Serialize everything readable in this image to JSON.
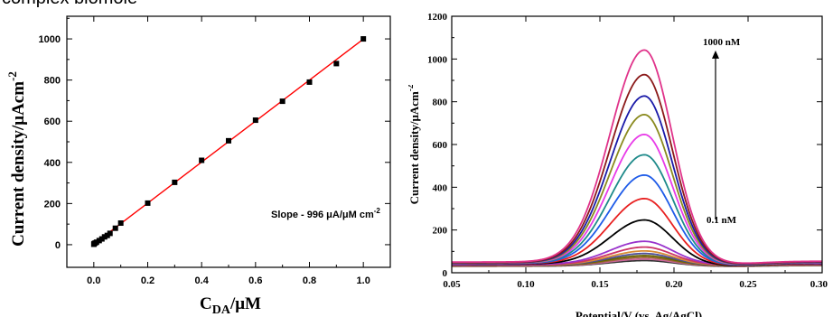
{
  "caption_text": "complex biomole",
  "chart_data": [
    {
      "type": "scatter",
      "xlabel_main": "C",
      "xlabel_sub": "DA",
      "xlabel_tail": "/μM",
      "ylabel": "Current density/μAcm",
      "ylabel_sup": "-2",
      "xlim": [
        -0.1,
        1.1
      ],
      "ylim": [
        -110,
        1110
      ],
      "xticks": [
        0.0,
        0.2,
        0.4,
        0.6,
        0.8,
        1.0
      ],
      "xtick_labels": [
        "0.0",
        "0.2",
        "0.4",
        "0.6",
        "0.8",
        "1.0"
      ],
      "yticks": [
        0,
        200,
        400,
        600,
        800,
        1000
      ],
      "ytick_labels": [
        "0",
        "200",
        "400",
        "600",
        "800",
        "1000"
      ],
      "x": [
        0.0001,
        0.001,
        0.005,
        0.01,
        0.02,
        0.03,
        0.04,
        0.05,
        0.06,
        0.08,
        0.1,
        0.2,
        0.3,
        0.4,
        0.5,
        0.6,
        0.7,
        0.8,
        0.9,
        1.0
      ],
      "y": [
        2,
        5,
        8,
        12,
        20,
        28,
        38,
        45,
        55,
        80,
        105,
        202,
        303,
        410,
        505,
        605,
        697,
        790,
        880,
        1000
      ],
      "fit": {
        "slope": 996,
        "intercept": 3
      },
      "marker_color": "#000000",
      "fit_color": "#ff0000",
      "annotation_pre": "Slope - 996 ",
      "annotation_unit": "μA/μM cm",
      "annotation_sup": "-2"
    },
    {
      "type": "line",
      "xlabel": "Potential/V (vs. Ag/AgCl)",
      "ylabel": "Current density/μAcm",
      "ylabel_sup": "-2",
      "xlim": [
        0.05,
        0.3
      ],
      "ylim": [
        0,
        1200
      ],
      "xticks": [
        0.05,
        0.1,
        0.15,
        0.2,
        0.25,
        0.3
      ],
      "xtick_labels": [
        "0.05",
        "0.10",
        "0.15",
        "0.20",
        "0.25",
        "0.30"
      ],
      "yticks": [
        0,
        200,
        400,
        600,
        800,
        1000,
        1200
      ],
      "ytick_labels": [
        "0",
        "200",
        "400",
        "600",
        "800",
        "1000",
        "1200"
      ],
      "peak_potential": 0.18,
      "peak_width": 0.022,
      "series": [
        {
          "peak": 1040,
          "baseline": 50,
          "color": "#e0338a"
        },
        {
          "peak": 925,
          "baseline": 48,
          "color": "#8b1a1a"
        },
        {
          "peak": 825,
          "baseline": 47,
          "color": "#1a1aa8"
        },
        {
          "peak": 738,
          "baseline": 46,
          "color": "#8a8a1e"
        },
        {
          "peak": 645,
          "baseline": 45,
          "color": "#e83ae8"
        },
        {
          "peak": 550,
          "baseline": 44,
          "color": "#1e8a8a"
        },
        {
          "peak": 455,
          "baseline": 43,
          "color": "#1e5be8"
        },
        {
          "peak": 345,
          "baseline": 42,
          "color": "#e82020"
        },
        {
          "peak": 245,
          "baseline": 40,
          "color": "#000000"
        },
        {
          "peak": 145,
          "baseline": 38,
          "color": "#9933cc"
        },
        {
          "peak": 118,
          "baseline": 36,
          "color": "#cc3366"
        },
        {
          "peak": 100,
          "baseline": 35,
          "color": "#d98c33"
        },
        {
          "peak": 88,
          "baseline": 34,
          "color": "#4d4d99"
        },
        {
          "peak": 78,
          "baseline": 33,
          "color": "#666600"
        },
        {
          "peak": 70,
          "baseline": 32,
          "color": "#996633"
        },
        {
          "peak": 62,
          "baseline": 31,
          "color": "#cc6699"
        },
        {
          "peak": 55,
          "baseline": 30,
          "color": "#333333"
        }
      ],
      "annotation_top": "1000 nM",
      "annotation_bottom": "0.1 nM",
      "arrow_from": 250,
      "arrow_to": 1040
    }
  ]
}
